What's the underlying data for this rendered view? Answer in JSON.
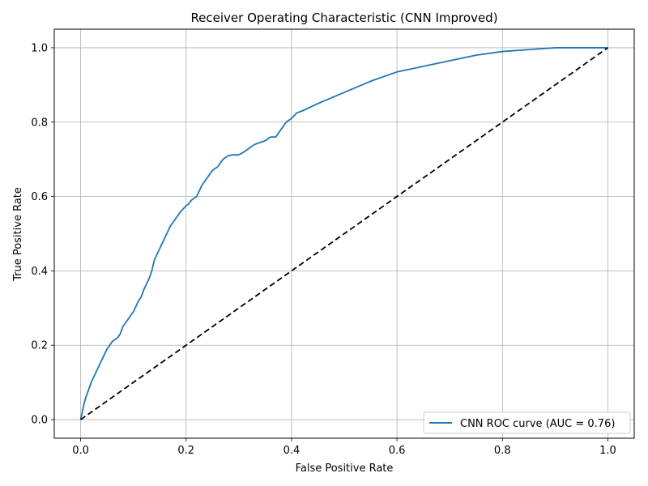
{
  "chart_data": {
    "type": "line",
    "title": "Receiver Operating Characteristic (CNN Improved)",
    "xlabel": "False Positive Rate",
    "ylabel": "True Positive Rate",
    "xlim": [
      -0.05,
      1.05
    ],
    "ylim": [
      -0.05,
      1.05
    ],
    "xticks": [
      "0.0",
      "0.2",
      "0.4",
      "0.6",
      "0.8",
      "1.0"
    ],
    "yticks": [
      "0.0",
      "0.2",
      "0.4",
      "0.6",
      "0.8",
      "1.0"
    ],
    "grid": true,
    "legend_position": "lower-right",
    "series": [
      {
        "name": "CNN ROC curve (AUC = 0.76)",
        "color": "#1f77b4",
        "style": "solid",
        "x": [
          0.0,
          0.003,
          0.006,
          0.01,
          0.015,
          0.02,
          0.03,
          0.04,
          0.05,
          0.055,
          0.06,
          0.07,
          0.075,
          0.08,
          0.09,
          0.1,
          0.11,
          0.115,
          0.12,
          0.13,
          0.135,
          0.14,
          0.15,
          0.16,
          0.17,
          0.18,
          0.19,
          0.2,
          0.205,
          0.21,
          0.22,
          0.23,
          0.24,
          0.25,
          0.26,
          0.265,
          0.27,
          0.28,
          0.29,
          0.3,
          0.31,
          0.32,
          0.33,
          0.34,
          0.35,
          0.36,
          0.37,
          0.38,
          0.39,
          0.4,
          0.41,
          0.42,
          0.45,
          0.5,
          0.55,
          0.6,
          0.65,
          0.7,
          0.75,
          0.8,
          0.85,
          0.9,
          0.95,
          1.0
        ],
        "y": [
          0.0,
          0.02,
          0.04,
          0.06,
          0.08,
          0.1,
          0.13,
          0.16,
          0.19,
          0.2,
          0.21,
          0.22,
          0.23,
          0.25,
          0.27,
          0.29,
          0.32,
          0.33,
          0.35,
          0.38,
          0.4,
          0.43,
          0.46,
          0.49,
          0.52,
          0.54,
          0.56,
          0.575,
          0.58,
          0.59,
          0.6,
          0.63,
          0.65,
          0.67,
          0.68,
          0.69,
          0.7,
          0.71,
          0.712,
          0.712,
          0.72,
          0.73,
          0.74,
          0.745,
          0.75,
          0.76,
          0.76,
          0.78,
          0.8,
          0.81,
          0.825,
          0.83,
          0.85,
          0.88,
          0.91,
          0.935,
          0.95,
          0.965,
          0.98,
          0.99,
          0.995,
          1.0,
          1.0,
          1.0
        ]
      },
      {
        "color": "#000000",
        "style": "dashed",
        "x": [
          0.0,
          1.0
        ],
        "y": [
          0.0,
          1.0
        ]
      }
    ]
  }
}
